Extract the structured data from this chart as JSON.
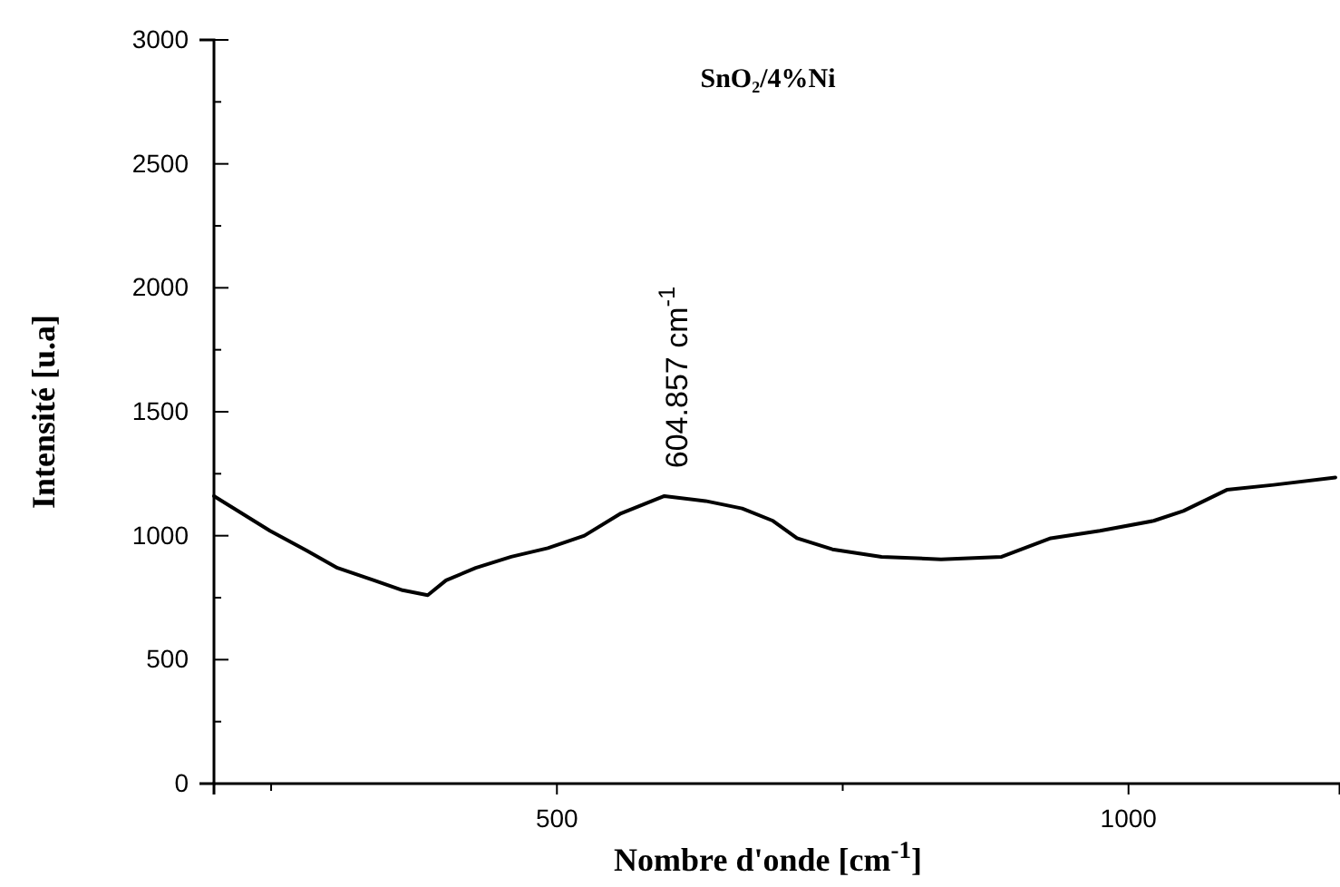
{
  "chart_data": {
    "type": "line",
    "title": "SnO₂/4%Ni",
    "xlabel": "Nombre d'onde [cm$^{-1}$]",
    "ylabel": "Intensité [u.a]",
    "xlim": [
      200,
      1185
    ],
    "xticks": [
      {
        "value": 250,
        "label": null
      },
      500,
      {
        "value": 750,
        "label": null
      },
      1000
    ],
    "ylim": [
      0,
      3000
    ],
    "yticks": [
      0,
      {
        "value": 250,
        "label": null
      },
      500,
      {
        "value": 750,
        "label": null
      },
      1000,
      {
        "value": 1250,
        "label": null
      },
      1500,
      {
        "value": 1750,
        "label": null
      },
      2000,
      {
        "value": 2250,
        "label": null
      },
      2500,
      {
        "value": 2750,
        "label": null
      },
      3000
    ],
    "grid": false,
    "marker": "none",
    "line_style": "solid",
    "annotations": [
      {
        "text": "604.857 cm$^{-1}$",
        "x": 604.857,
        "y": 1170
      }
    ],
    "series": [
      {
        "color": "#000000",
        "x": [
          200,
          249,
          281,
          308,
          340,
          365,
          387,
          403,
          429,
          460,
          492,
          524,
          556,
          594,
          630,
          662,
          689,
          710,
          741,
          784,
          836,
          889,
          932,
          975,
          1022,
          1048,
          1086,
          1127,
          1181
        ],
        "values": [
          1160,
          1020,
          940,
          870,
          820,
          780,
          760,
          820,
          870,
          915,
          950,
          1000,
          1090,
          1160,
          1140,
          1110,
          1060,
          990,
          945,
          915,
          905,
          915,
          990,
          1020,
          1060,
          1100,
          1185,
          1205,
          1235
        ]
      }
    ]
  }
}
